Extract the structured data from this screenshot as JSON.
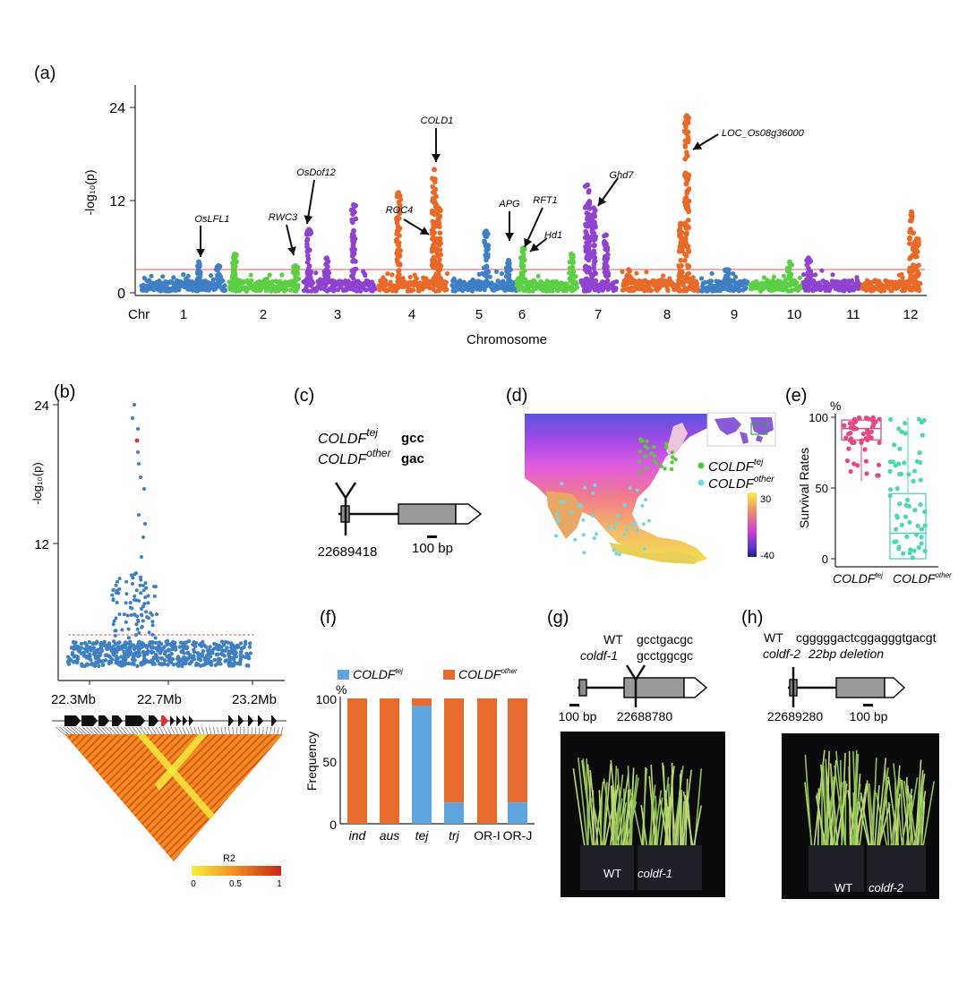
{
  "panels": {
    "a": "(a)",
    "b": "(b)",
    "c": "(c)",
    "d": "(d)",
    "e": "(e)",
    "f": "(f)",
    "g": "(g)",
    "h": "(h)"
  },
  "colors": {
    "blue": "#3f7fc4",
    "green": "#5ccf45",
    "purple": "#8f43cf",
    "orange": "#e86a28",
    "threshold": "#e05555",
    "pink": "#e14a86",
    "teal": "#4fd6b6",
    "fblue": "#5ea6dd",
    "forange": "#e66b2c",
    "ldyellow": "#f3e63a",
    "ldred": "#d33a1a"
  },
  "manhattan": {
    "ylabel": "-log₁₀(p)",
    "xlabel": "Chromosome",
    "chr_prefix": "Chr",
    "ticks": [
      "0",
      "12",
      "24"
    ],
    "chromosomes": [
      "1",
      "2",
      "3",
      "4",
      "5",
      "6",
      "7",
      "8",
      "9",
      "10",
      "11",
      "12"
    ],
    "genes": [
      "OsLFL1",
      "RWC3",
      "OsDof12",
      "ROC4",
      "COLD1",
      "APG",
      "RFT1",
      "Hd1",
      "Ghd7",
      "LOC_Os08g36000"
    ]
  },
  "panel_b": {
    "ylabel": "-log₁₀(p)",
    "ticks": [
      "24",
      "12"
    ],
    "positions": [
      "22.3Mb",
      "22.7Mb",
      "23.2Mb"
    ],
    "ld_label": "R2",
    "ld_ticks": [
      "0",
      "0.5",
      "1"
    ]
  },
  "panel_c": {
    "allele1_gene": "COLDF",
    "allele1_sup": "tej",
    "allele1_codon": "gcc",
    "allele2_gene": "COLDF",
    "allele2_sup": "other",
    "allele2_codon": "gac",
    "position": "22689418",
    "scale": "100 bp"
  },
  "panel_d": {
    "legend": [
      {
        "gene": "COLDF",
        "sup": "tej"
      },
      {
        "gene": "COLDF",
        "sup": "other"
      }
    ],
    "scale": [
      "30",
      "-40"
    ]
  },
  "panel_e": {
    "unit": "%",
    "ylabel": "Survival Rates",
    "ticks": [
      "100",
      "50",
      "0"
    ],
    "groups": [
      {
        "gene": "COLDF",
        "sup": "tej"
      },
      {
        "gene": "COLDF",
        "sup": "other"
      }
    ]
  },
  "chart_data": [
    {
      "type": "scatter",
      "title": "",
      "xlabel": "",
      "ylabel": "Survival Rates",
      "ylim": [
        0,
        100
      ],
      "categories": [
        "COLDF tej",
        "COLDF other"
      ],
      "summary": [
        {
          "name": "COLDF tej",
          "median": 92,
          "q1": 84,
          "q3": 98
        },
        {
          "name": "COLDF other",
          "median": 18,
          "q1": 0,
          "q3": 46
        }
      ]
    },
    {
      "type": "bar",
      "title": "",
      "xlabel": "",
      "ylabel": "Frequency",
      "ylim": [
        0,
        100
      ],
      "categories": [
        "ind",
        "aus",
        "tej",
        "trj",
        "OR-I",
        "OR-J"
      ],
      "series": [
        {
          "name": "COLDF tej",
          "values": [
            0,
            0,
            94,
            17,
            0,
            17
          ]
        },
        {
          "name": "COLDF other",
          "values": [
            100,
            100,
            6,
            83,
            100,
            83
          ]
        }
      ]
    }
  ],
  "panel_f": {
    "unit": "%",
    "ylabel": "Frequency",
    "ticks": [
      "100",
      "50",
      "0"
    ],
    "legend": [
      {
        "gene": "COLDF",
        "sup": "tej"
      },
      {
        "gene": "COLDF",
        "sup": "other"
      }
    ],
    "categories": [
      "ind",
      "aus",
      "tej",
      "trj",
      "OR-I",
      "OR-J"
    ]
  },
  "panel_g": {
    "wt": "WT",
    "wt_seq": "gcctgacgc",
    "mut": "coldf-1",
    "mut_seq": "gcctggcgc",
    "scale": "100 bp",
    "position": "22688780",
    "photo_wt": "WT",
    "photo_mut": "coldf-1"
  },
  "panel_h": {
    "wt": "WT",
    "wt_seq": "cgggggactcggagggtgacgt",
    "mut": "coldf-2",
    "mut_seq": "22bp deletion",
    "position": "22689280",
    "scale": "100 bp",
    "photo_wt": "WT",
    "photo_mut": "coldf-2"
  }
}
